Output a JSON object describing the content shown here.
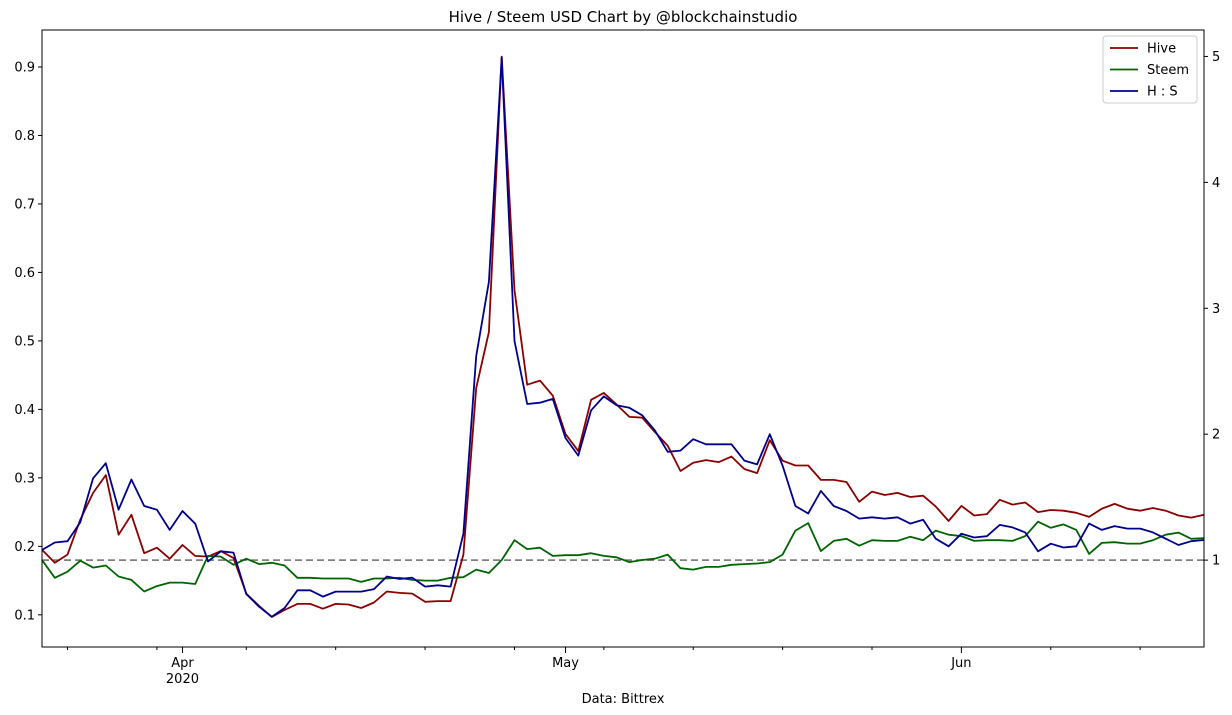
{
  "chart_data": {
    "type": "line",
    "title": "Hive / Steem USD Chart by @blockchainstudio",
    "xlabel": "Data: Bittrex",
    "x_start": "2020-03-21",
    "x_end": "2020-06-20",
    "x_major_ticks": [
      {
        "date": "2020-04-01",
        "label": "Apr",
        "sublabel": "2020"
      },
      {
        "date": "2020-05-01",
        "label": "May",
        "sublabel": ""
      },
      {
        "date": "2020-06-01",
        "label": "Jun",
        "sublabel": ""
      }
    ],
    "x_minor_ticks": [
      "2020-03-23",
      "2020-03-30",
      "2020-04-06",
      "2020-04-13",
      "2020-04-20",
      "2020-04-27",
      "2020-05-04",
      "2020-05-11",
      "2020-05-18",
      "2020-05-25",
      "2020-06-08",
      "2020-06-15"
    ],
    "y_left": {
      "lim": [
        0.053,
        0.954
      ],
      "ticks": [
        "0.1",
        "0.2",
        "0.3",
        "0.4",
        "0.5",
        "0.6",
        "0.7",
        "0.8",
        "0.9"
      ]
    },
    "y_right": {
      "lim": [
        0.31,
        5.21
      ],
      "ticks": [
        "1",
        "2",
        "3",
        "4",
        "5"
      ]
    },
    "reference_line": {
      "axis": "right",
      "value": 1,
      "style": "dashed",
      "color": "#808080"
    },
    "legend": {
      "placement": "top-right"
    },
    "series": [
      {
        "name": "Hive",
        "axis": "left",
        "color": "#8b0000",
        "values": [
          0.195,
          0.176,
          0.188,
          0.239,
          0.278,
          0.304,
          0.217,
          0.246,
          0.19,
          0.198,
          0.182,
          0.202,
          0.186,
          0.185,
          0.193,
          0.183,
          0.131,
          0.113,
          0.097,
          0.107,
          0.116,
          0.116,
          0.109,
          0.116,
          0.115,
          0.11,
          0.118,
          0.134,
          0.132,
          0.131,
          0.119,
          0.12,
          0.12,
          0.188,
          0.431,
          0.513,
          0.915,
          0.574,
          0.436,
          0.442,
          0.42,
          0.364,
          0.339,
          0.414,
          0.424,
          0.407,
          0.389,
          0.388,
          0.367,
          0.347,
          0.31,
          0.322,
          0.326,
          0.323,
          0.331,
          0.313,
          0.307,
          0.355,
          0.325,
          0.318,
          0.318,
          0.297,
          0.297,
          0.294,
          0.265,
          0.28,
          0.275,
          0.278,
          0.272,
          0.274,
          0.258,
          0.237,
          0.259,
          0.245,
          0.247,
          0.268,
          0.261,
          0.264,
          0.25,
          0.253,
          0.252,
          0.249,
          0.243,
          0.255,
          0.262,
          0.255,
          0.252,
          0.256,
          0.252,
          0.245,
          0.242,
          0.246
        ]
      },
      {
        "name": "Steem",
        "axis": "left",
        "color": "#006400",
        "values": [
          0.18,
          0.154,
          0.163,
          0.179,
          0.169,
          0.172,
          0.156,
          0.151,
          0.134,
          0.142,
          0.147,
          0.147,
          0.145,
          0.186,
          0.185,
          0.173,
          0.182,
          0.174,
          0.176,
          0.172,
          0.154,
          0.154,
          0.153,
          0.153,
          0.153,
          0.148,
          0.153,
          0.153,
          0.154,
          0.151,
          0.15,
          0.15,
          0.154,
          0.155,
          0.166,
          0.161,
          0.18,
          0.209,
          0.196,
          0.198,
          0.186,
          0.187,
          0.187,
          0.19,
          0.186,
          0.184,
          0.177,
          0.18,
          0.182,
          0.188,
          0.168,
          0.166,
          0.17,
          0.17,
          0.173,
          0.174,
          0.175,
          0.177,
          0.188,
          0.223,
          0.234,
          0.193,
          0.208,
          0.211,
          0.201,
          0.209,
          0.208,
          0.208,
          0.214,
          0.209,
          0.223,
          0.217,
          0.215,
          0.208,
          0.209,
          0.209,
          0.208,
          0.215,
          0.236,
          0.227,
          0.232,
          0.224,
          0.189,
          0.205,
          0.206,
          0.204,
          0.204,
          0.209,
          0.217,
          0.22,
          0.211,
          0.212
        ]
      },
      {
        "name": "H : S",
        "axis": "right",
        "color": "#00008b",
        "values": [
          1.08,
          1.14,
          1.15,
          1.3,
          1.65,
          1.77,
          1.4,
          1.64,
          1.43,
          1.4,
          1.24,
          1.39,
          1.29,
          0.99,
          1.07,
          1.06,
          0.73,
          0.63,
          0.55,
          0.62,
          0.76,
          0.76,
          0.71,
          0.75,
          0.75,
          0.75,
          0.77,
          0.87,
          0.85,
          0.86,
          0.79,
          0.8,
          0.79,
          1.21,
          2.62,
          3.21,
          4.99,
          2.74,
          2.24,
          2.25,
          2.28,
          1.97,
          1.83,
          2.19,
          2.3,
          2.23,
          2.21,
          2.15,
          2.03,
          1.86,
          1.87,
          1.96,
          1.92,
          1.92,
          1.92,
          1.79,
          1.76,
          2.0,
          1.75,
          1.43,
          1.37,
          1.55,
          1.43,
          1.39,
          1.33,
          1.34,
          1.33,
          1.34,
          1.29,
          1.32,
          1.17,
          1.11,
          1.21,
          1.18,
          1.19,
          1.28,
          1.26,
          1.22,
          1.07,
          1.13,
          1.1,
          1.11,
          1.29,
          1.24,
          1.27,
          1.25,
          1.25,
          1.22,
          1.17,
          1.12,
          1.15,
          1.16
        ]
      }
    ]
  }
}
